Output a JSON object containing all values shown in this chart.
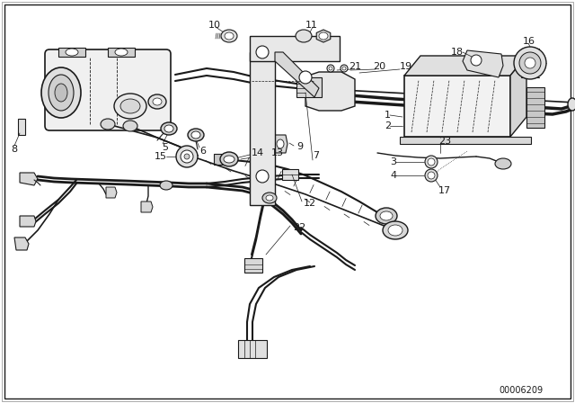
{
  "bg_color": "#ffffff",
  "line_color": "#1a1a1a",
  "fig_width": 6.4,
  "fig_height": 4.48,
  "dpi": 100,
  "catalog_number": "00006209",
  "border_color": "#cccccc"
}
